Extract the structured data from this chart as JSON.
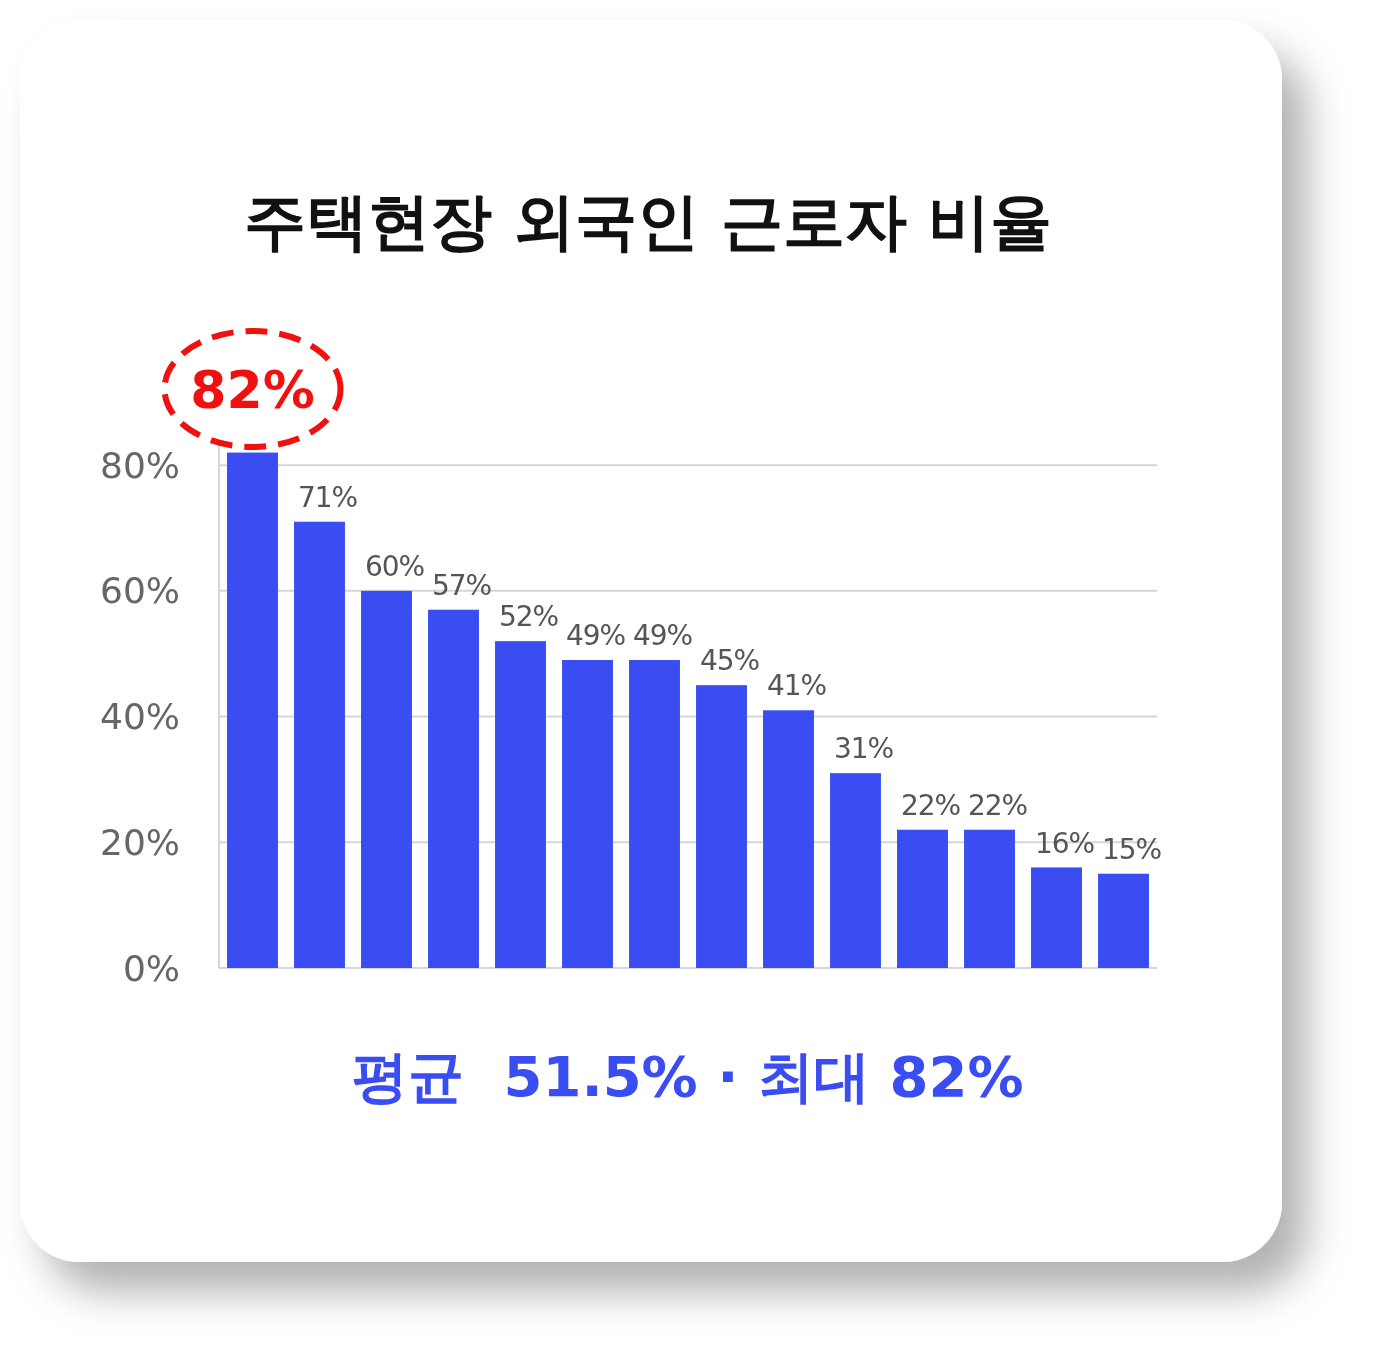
{
  "chart_data": {
    "type": "bar",
    "title": "주택현장 외국인 근로자 비율",
    "categories": [
      null,
      null,
      null,
      null,
      null,
      null,
      null,
      null,
      null,
      null,
      null,
      null,
      null,
      null
    ],
    "values": [
      82,
      71,
      60,
      57,
      52,
      49,
      49,
      45,
      41,
      31,
      22,
      22,
      16,
      15
    ],
    "value_labels": [
      "82%",
      "71%",
      "60%",
      "57%",
      "52%",
      "49%",
      "49%",
      "45%",
      "41%",
      "31%",
      "22%",
      "22%",
      "16%",
      "15%"
    ],
    "color": "#3a4df3",
    "ylim": [
      0,
      84
    ],
    "yticks": [
      {
        "value": 0,
        "label": "0%"
      },
      {
        "value": 20,
        "label": "20%"
      },
      {
        "value": 40,
        "label": "40%"
      },
      {
        "value": 60,
        "label": "60%"
      },
      {
        "value": 80,
        "label": "80%"
      }
    ],
    "grid": "y",
    "tick_labels": "y",
    "annotations": [
      "평균  51.5% · 최대 82%"
    ]
  }
}
